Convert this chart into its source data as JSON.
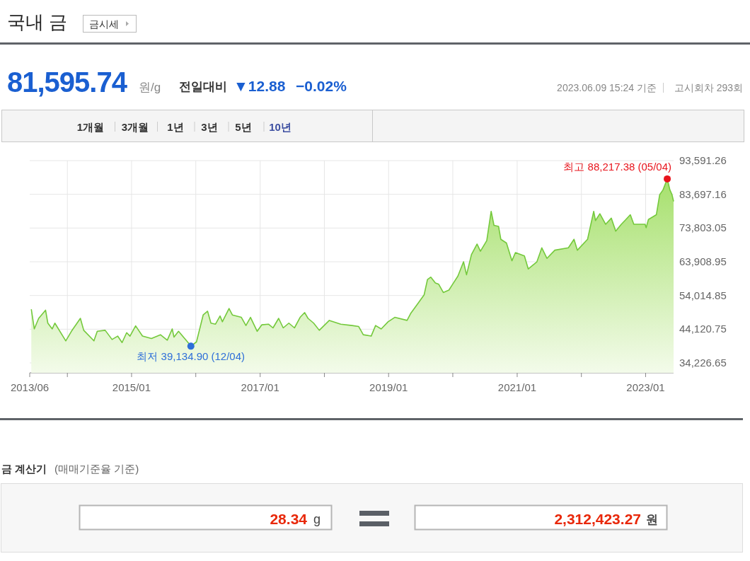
{
  "chart_data": {
    "type": "area",
    "title": "국내 금",
    "color": "#74c93c",
    "x": [
      "2013-06-10",
      "2013-06-27",
      "2013-07-22",
      "2013-08-30",
      "2013-09-12",
      "2013-10-07",
      "2013-10-22",
      "2013-12-23",
      "2014-01-24",
      "2014-03-16",
      "2014-04-04",
      "2014-06-01",
      "2014-06-20",
      "2014-08-04",
      "2014-09-12",
      "2014-10-14",
      "2014-11-08",
      "2014-12-04",
      "2014-12-23",
      "2015-01-24",
      "2015-03-04",
      "2015-04-24",
      "2015-06-14",
      "2015-07-23",
      "2015-08-20",
      "2015-08-30",
      "2015-09-25",
      "2015-11-15",
      "2015-12-04",
      "2016-01-05",
      "2016-02-12",
      "2016-03-08",
      "2016-03-27",
      "2016-04-22",
      "2016-05-18",
      "2016-05-31",
      "2016-07-08",
      "2016-07-27",
      "2016-09-16",
      "2016-10-12",
      "2016-11-07",
      "2016-12-15",
      "2017-01-10",
      "2017-02-17",
      "2017-03-15",
      "2017-04-16",
      "2017-05-12",
      "2017-06-13",
      "2017-07-15",
      "2017-08-16",
      "2017-09-11",
      "2017-09-30",
      "2017-11-01",
      "2017-12-03",
      "2018-01-29",
      "2018-04-04",
      "2018-06-07",
      "2018-07-15",
      "2018-08-10",
      "2018-09-24",
      "2018-10-19",
      "2018-11-20",
      "2018-12-29",
      "2019-02-05",
      "2019-04-16",
      "2019-05-06",
      "2019-06-13",
      "2019-07-22",
      "2019-08-10",
      "2019-08-29",
      "2019-09-24",
      "2019-10-13",
      "2019-11-08",
      "2019-12-10",
      "2020-01-05",
      "2020-01-30",
      "2020-03-02",
      "2020-03-19",
      "2020-04-16",
      "2020-05-18",
      "2020-06-06",
      "2020-07-12",
      "2020-08-06",
      "2020-08-22",
      "2020-09-17",
      "2020-09-30",
      "2020-11-01",
      "2020-12-02",
      "2020-12-22",
      "2021-02-11",
      "2021-03-05",
      "2021-04-23",
      "2021-05-21",
      "2021-06-19",
      "2021-08-03",
      "2021-10-19",
      "2021-11-20",
      "2021-12-09",
      "2022-02-05",
      "2022-03-12",
      "2022-03-22",
      "2022-04-16",
      "2022-05-19",
      "2022-06-20",
      "2022-07-15",
      "2022-08-16",
      "2022-09-11",
      "2022-10-06",
      "2022-10-26",
      "2022-12-29",
      "2023-01-04",
      "2023-01-17",
      "2023-03-03",
      "2023-03-22",
      "2023-04-10",
      "2023-05-04",
      "2023-05-19",
      "2023-05-31",
      "2023-06-09"
    ],
    "values": [
      50000,
      44200,
      47300,
      49700,
      45900,
      44200,
      45900,
      40700,
      43500,
      47300,
      43800,
      40700,
      43500,
      43800,
      41100,
      42100,
      40200,
      43100,
      42100,
      45100,
      42100,
      41400,
      42500,
      40900,
      44200,
      41800,
      43500,
      40400,
      39134.9,
      40400,
      48300,
      49400,
      45900,
      45600,
      48000,
      46300,
      50200,
      48300,
      47600,
      45200,
      47600,
      43500,
      45400,
      45600,
      44500,
      47300,
      44500,
      45900,
      44500,
      47600,
      49000,
      47300,
      45900,
      43800,
      46700,
      45600,
      45200,
      44900,
      42500,
      42100,
      45200,
      44200,
      46300,
      47600,
      46700,
      48700,
      51400,
      54200,
      58700,
      59400,
      57700,
      57300,
      54900,
      55600,
      57700,
      59700,
      63900,
      60100,
      66000,
      69100,
      67000,
      70100,
      78700,
      74600,
      74300,
      70500,
      69400,
      64200,
      66600,
      65600,
      61800,
      63900,
      68000,
      64900,
      67300,
      68000,
      70500,
      67300,
      70500,
      78700,
      76000,
      78000,
      74900,
      76700,
      72900,
      74900,
      76300,
      77700,
      74900,
      74900,
      73900,
      76300,
      77700,
      83600,
      85000,
      88217.38,
      85000,
      83600,
      81595.74
    ],
    "xlim": [
      "2013-06-01",
      "2023-06-09"
    ],
    "xticks": [
      {
        "value": "2013-06",
        "label": "2013/06"
      },
      {
        "value": "2014-01",
        "label": null
      },
      {
        "value": "2015-01",
        "label": "2015/01"
      },
      {
        "value": "2016-01",
        "label": null
      },
      {
        "value": "2017-01",
        "label": "2017/01"
      },
      {
        "value": "2018-01",
        "label": null
      },
      {
        "value": "2019-01",
        "label": "2019/01"
      },
      {
        "value": "2020-01",
        "label": null
      },
      {
        "value": "2021-01",
        "label": "2021/01"
      },
      {
        "value": "2022-01",
        "label": null
      },
      {
        "value": "2023-01",
        "label": "2023/01"
      }
    ],
    "ylim": [
      31320,
      93591.26
    ],
    "yticks": [
      {
        "value": 34226.65,
        "label": "34,226.65"
      },
      {
        "value": 44120.75,
        "label": "44,120.75"
      },
      {
        "value": 54014.85,
        "label": "54,014.85"
      },
      {
        "value": 63908.95,
        "label": "63,908.95"
      },
      {
        "value": 73803.05,
        "label": "73,803.05"
      },
      {
        "value": 83697.16,
        "label": "83,697.16"
      },
      {
        "value": 93591.26,
        "label": "93,591.26"
      }
    ],
    "grid": true,
    "annotations": [
      {
        "text": "최고 88,217.38 (05/04)",
        "x": "2023-05-04",
        "y": 88217.38
      },
      {
        "text": "최저 39,134.90 (12/04)",
        "x": "2015-12-04",
        "y": 39134.9
      },
      "금시세",
      "81,595.74",
      "원/g",
      "전일대비",
      "▼12.88",
      "−0.02%",
      "2023.06.09 15:24 기준",
      "고시회차 293회",
      "1개월",
      "3개월",
      "1년",
      "3년",
      "5년",
      "10년",
      "금 계산기",
      "(매매기준율 기준)",
      "28.34",
      "g",
      "2,312,423.27",
      "원"
    ]
  }
}
